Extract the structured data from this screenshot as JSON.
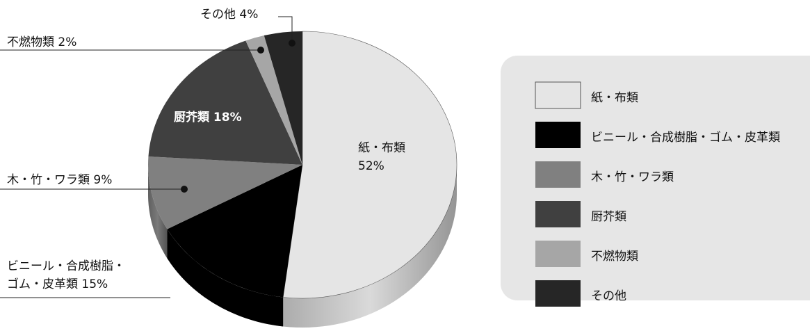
{
  "chart_data": {
    "type": "pie",
    "categories": [
      "紙・布類",
      "ビニール・合成樹脂・ゴム・皮革類",
      "木・竹・ワラ類",
      "厨芥類",
      "不燃物類",
      "その他"
    ],
    "values": [
      52,
      15,
      9,
      18,
      2,
      4
    ],
    "value_labels": [
      "52%",
      "15%",
      "9%",
      "18%",
      "2%",
      "4%"
    ],
    "colors": [
      "#e5e5e5",
      "#000000",
      "#808080",
      "#404040",
      "#a6a6a6",
      "#262626"
    ],
    "legend": "right"
  }
}
